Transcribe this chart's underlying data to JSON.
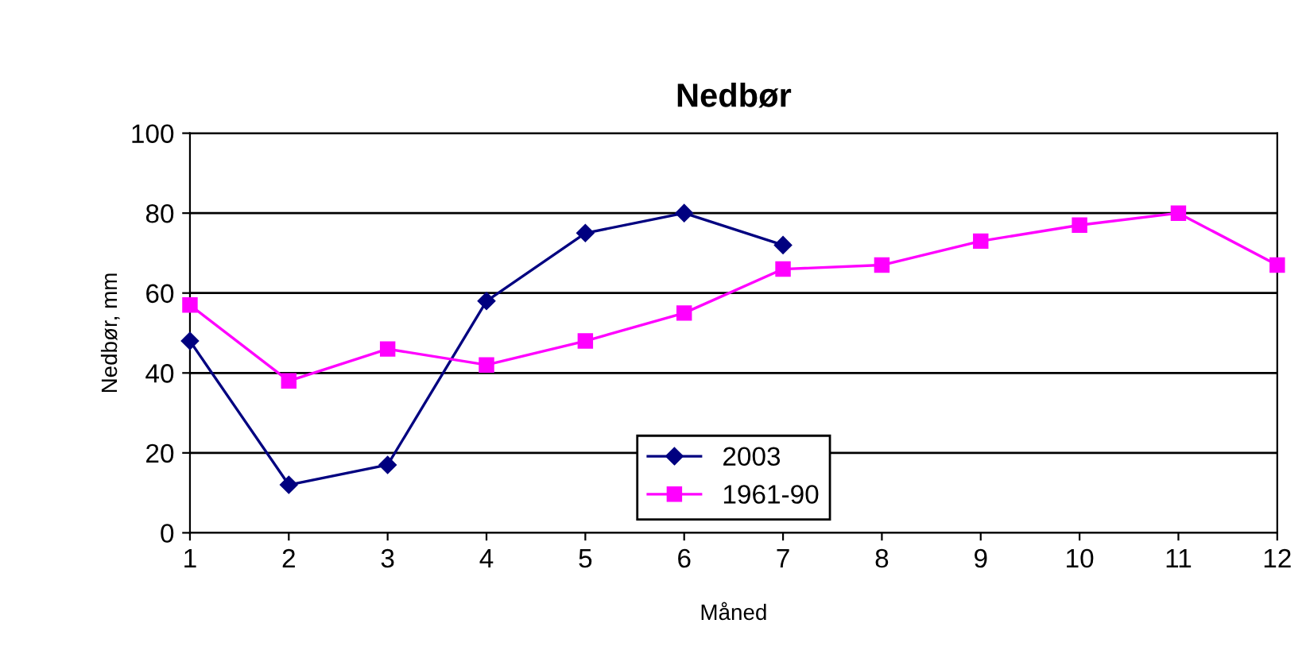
{
  "chart_data": {
    "type": "line",
    "title": "Nedbør",
    "xlabel": "Måned",
    "ylabel": "Nedbør, mm",
    "x": [
      1,
      2,
      3,
      4,
      5,
      6,
      7,
      8,
      9,
      10,
      11,
      12
    ],
    "series": [
      {
        "name": "2003",
        "color": "#000080",
        "marker": "diamond",
        "values": [
          48,
          12,
          17,
          58,
          75,
          80,
          72,
          null,
          null,
          null,
          null,
          null
        ]
      },
      {
        "name": "1961-90",
        "color": "#ff00ff",
        "marker": "square",
        "values": [
          57,
          38,
          46,
          42,
          48,
          55,
          66,
          67,
          73,
          77,
          80,
          67
        ]
      }
    ],
    "xlim": [
      1,
      12
    ],
    "xticks": [
      1,
      2,
      3,
      4,
      5,
      6,
      7,
      8,
      9,
      10,
      11,
      12
    ],
    "ylim": [
      0,
      100
    ],
    "yticks": [
      0,
      20,
      40,
      60,
      80,
      100
    ],
    "grid": "y",
    "legend": "bottom",
    "line_style": "solid"
  }
}
